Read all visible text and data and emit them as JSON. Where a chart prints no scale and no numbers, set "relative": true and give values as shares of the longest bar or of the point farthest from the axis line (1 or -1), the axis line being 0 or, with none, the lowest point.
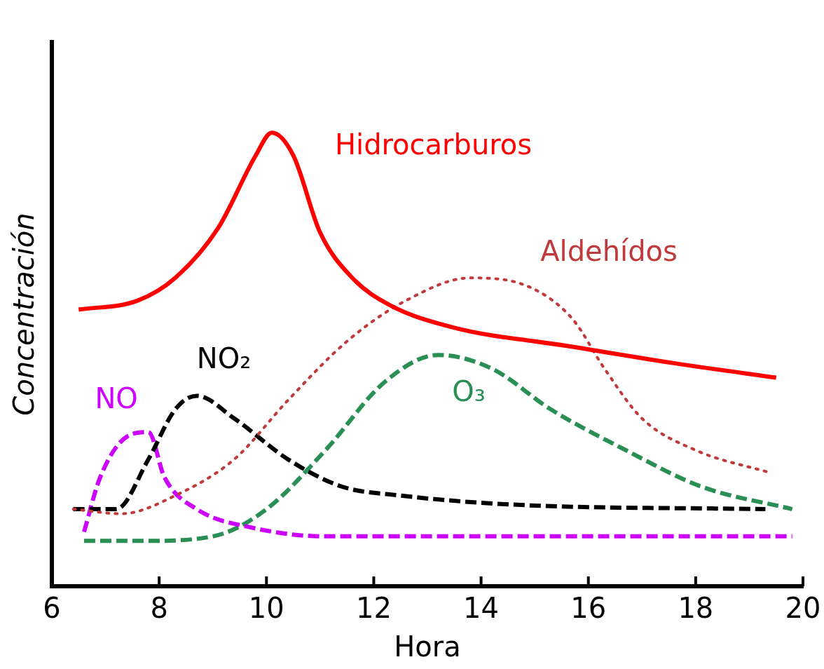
{
  "chart_data": {
    "type": "line",
    "xlabel": "Hora",
    "ylabel": "Concentración",
    "relative": true,
    "xlim": [
      6,
      20
    ],
    "xticks": [
      6,
      8,
      10,
      12,
      14,
      16,
      18,
      20
    ],
    "grid": false,
    "legend": false,
    "marker": "none",
    "series": [
      {
        "name": "Hidrocarburos",
        "color": "#ff0000",
        "line_style": "solid",
        "x": [
          6.5,
          7.6,
          8.3,
          9.1,
          9.8,
          10.1,
          10.5,
          11.0,
          11.6,
          12.3,
          13.5,
          15.6,
          17.7,
          19.5
        ],
        "values": [
          0.61,
          0.63,
          0.68,
          0.79,
          0.95,
          1.0,
          0.95,
          0.78,
          0.68,
          0.62,
          0.57,
          0.53,
          0.49,
          0.46
        ]
      },
      {
        "name": "Aldehídos",
        "color": "#c0393b",
        "line_style": "dotted",
        "x": [
          6.4,
          7.3,
          8.3,
          9.4,
          10.4,
          11.5,
          12.6,
          13.8,
          14.9,
          15.7,
          16.3,
          17.0,
          18.0,
          19.4
        ],
        "values": [
          0.17,
          0.16,
          0.2,
          0.28,
          0.41,
          0.54,
          0.63,
          0.68,
          0.66,
          0.59,
          0.48,
          0.37,
          0.3,
          0.25
        ]
      },
      {
        "name": "NO₂",
        "color": "#000000",
        "line_style": "dashed",
        "x": [
          6.4,
          7.2,
          7.8,
          8.3,
          8.7,
          9.4,
          10.4,
          11.4,
          12.5,
          14.6,
          19.3
        ],
        "values": [
          0.17,
          0.17,
          0.28,
          0.39,
          0.42,
          0.37,
          0.28,
          0.22,
          0.2,
          0.18,
          0.17
        ]
      },
      {
        "name": "NO",
        "color": "#cc00ff",
        "line_style": "dashed",
        "x": [
          6.6,
          6.9,
          7.4,
          7.8,
          8.1,
          8.7,
          9.7,
          11.1,
          13.9,
          19.8
        ],
        "values": [
          0.12,
          0.24,
          0.33,
          0.34,
          0.24,
          0.17,
          0.13,
          0.11,
          0.11,
          0.11
        ]
      },
      {
        "name": "O₃",
        "color": "#2a8f55",
        "line_style": "dashed",
        "x": [
          6.6,
          7.7,
          9.0,
          10.0,
          11.1,
          12.2,
          13.2,
          14.2,
          15.3,
          16.7,
          18.1,
          19.8
        ],
        "values": [
          0.1,
          0.1,
          0.11,
          0.17,
          0.3,
          0.45,
          0.51,
          0.48,
          0.39,
          0.3,
          0.22,
          0.17
        ]
      }
    ]
  }
}
